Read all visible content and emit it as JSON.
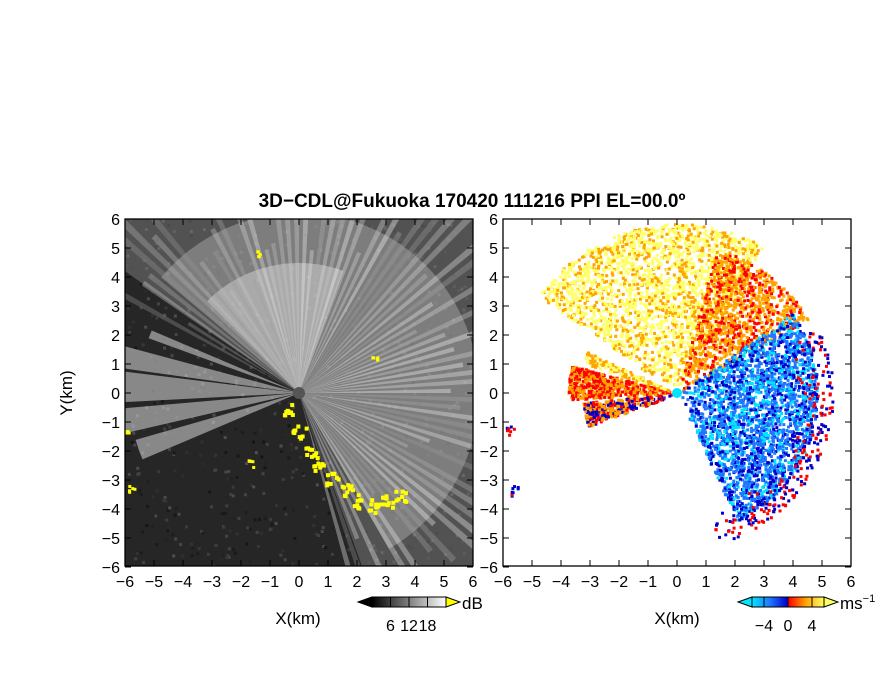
{
  "figure": {
    "title": "3D−CDL@Fukuoka 170420 111216 PPI EL=00.0º"
  },
  "chart_data": [
    {
      "type": "heatmap",
      "panel": "left",
      "quantity": "SNR",
      "xlabel": "X(km)",
      "ylabel": "Y(km)",
      "xlim": [
        -6,
        6
      ],
      "ylim": [
        -6,
        6
      ],
      "x_ticks": [
        "−6",
        "−5",
        "−4",
        "−3",
        "−2",
        "−1",
        "0",
        "1",
        "2",
        "3",
        "4",
        "5",
        "6"
      ],
      "y_ticks": [
        "−6",
        "−5",
        "−4",
        "−3",
        "−2",
        "−1",
        "0",
        "1",
        "2",
        "3",
        "4",
        "5",
        "6"
      ],
      "colorbar": {
        "unit": "dB",
        "ticks": [
          "6",
          "12",
          "18"
        ],
        "range": [
          0,
          24
        ],
        "colors": [
          "#000000",
          "#ffffff",
          "#ffff00"
        ]
      },
      "background_color": "#262626",
      "highlight_color": "#ffff00",
      "radar_origin": [
        0,
        0
      ]
    },
    {
      "type": "heatmap",
      "panel": "right",
      "quantity": "Doppler velocity",
      "xlabel": "X(km)",
      "xlim": [
        -6,
        6
      ],
      "ylim": [
        -6,
        6
      ],
      "x_ticks": [
        "−6",
        "−5",
        "−4",
        "−3",
        "−2",
        "−1",
        "0",
        "1",
        "2",
        "3",
        "4",
        "5",
        "6"
      ],
      "y_ticks": [
        "−6",
        "−5",
        "−4",
        "−3",
        "−2",
        "−1",
        "0",
        "1",
        "2",
        "3",
        "4",
        "5",
        "6"
      ],
      "colorbar": {
        "unit": "ms",
        "unit_exponent": "−1",
        "ticks": [
          "−4",
          "0",
          "4"
        ],
        "range": [
          -6,
          6
        ],
        "colors": [
          "#00e5ff",
          "#1e78ff",
          "#0000cc",
          "#ff0000",
          "#ffa500",
          "#ffff66"
        ]
      },
      "background_color": "#ffffff",
      "radar_origin": [
        0,
        0
      ],
      "radar_marker_color": "#00e5ff"
    }
  ]
}
